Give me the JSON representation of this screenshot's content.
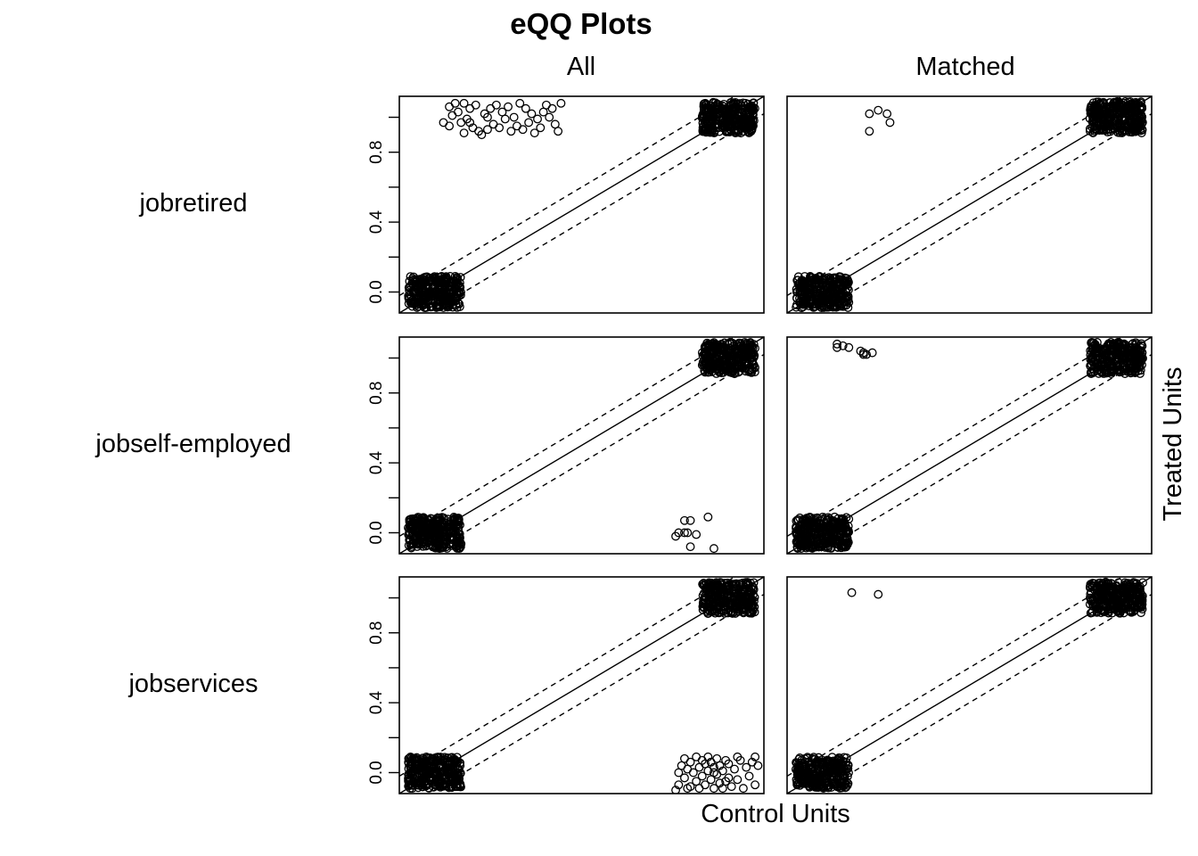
{
  "chart_data": {
    "type": "scatter",
    "title": "eQQ Plots",
    "column_labels": [
      "All",
      "Matched"
    ],
    "row_labels": [
      "jobretired",
      "jobself-employed",
      "jobservices"
    ],
    "xlabel": "Control Units",
    "ylabel": "Treated Units",
    "y_ticks": [
      "0.0",
      "0.4",
      "0.8"
    ],
    "y_tick_values": [
      0.0,
      0.2,
      0.4,
      0.6,
      0.8,
      1.0
    ],
    "xlim": [
      -0.12,
      1.12
    ],
    "ylim": [
      -0.12,
      1.12
    ],
    "reference_lines": {
      "identity": "solid",
      "offset": 0.1,
      "offset_style": "dashed"
    },
    "jitter": 0.09,
    "marker": "open-circle",
    "panels": [
      {
        "row": "jobretired",
        "column": "All",
        "clusters": [
          {
            "x": 0,
            "y": 0,
            "density": "dense"
          },
          {
            "x": 1,
            "y": 1,
            "density": "dense"
          }
        ],
        "points": [
          [
            0.07,
            1.08
          ],
          [
            0.05,
            1.06
          ],
          [
            0.1,
            1.08
          ],
          [
            0.12,
            1.05
          ],
          [
            0.08,
            1.03
          ],
          [
            0.06,
            1.01
          ],
          [
            0.11,
            0.99
          ],
          [
            0.09,
            0.97
          ],
          [
            0.05,
            0.95
          ],
          [
            0.13,
            0.94
          ],
          [
            0.15,
            0.92
          ],
          [
            0.1,
            0.91
          ],
          [
            0.16,
            0.9
          ],
          [
            0.18,
            0.93
          ],
          [
            0.2,
            0.96
          ],
          [
            0.17,
            1.02
          ],
          [
            0.19,
            1.05
          ],
          [
            0.21,
            1.07
          ],
          [
            0.23,
            1.03
          ],
          [
            0.24,
            0.99
          ],
          [
            0.22,
            0.94
          ],
          [
            0.26,
            0.92
          ],
          [
            0.28,
            0.95
          ],
          [
            0.27,
            1.0
          ],
          [
            0.25,
            1.06
          ],
          [
            0.29,
            1.08
          ],
          [
            0.31,
            1.05
          ],
          [
            0.33,
            1.02
          ],
          [
            0.32,
            0.97
          ],
          [
            0.3,
            0.93
          ],
          [
            0.34,
            0.91
          ],
          [
            0.36,
            0.94
          ],
          [
            0.35,
            0.99
          ],
          [
            0.37,
            1.03
          ],
          [
            0.38,
            1.07
          ],
          [
            0.4,
            1.05
          ],
          [
            0.39,
            1.0
          ],
          [
            0.41,
            0.96
          ],
          [
            0.42,
            0.92
          ],
          [
            0.43,
            1.08
          ],
          [
            0.03,
            0.97
          ],
          [
            0.14,
            1.07
          ],
          [
            0.12,
            0.97
          ],
          [
            0.18,
            1.0
          ]
        ]
      },
      {
        "row": "jobretired",
        "column": "Matched",
        "clusters": [
          {
            "x": 0,
            "y": 0,
            "density": "dense"
          },
          {
            "x": 1,
            "y": 1,
            "density": "dense"
          }
        ],
        "points": [
          [
            0.16,
            1.02
          ],
          [
            0.19,
            1.04
          ],
          [
            0.22,
            1.02
          ],
          [
            0.23,
            0.97
          ],
          [
            0.16,
            0.92
          ]
        ]
      },
      {
        "row": "jobself-employed",
        "column": "All",
        "clusters": [
          {
            "x": 0,
            "y": 0,
            "density": "dense"
          },
          {
            "x": 1,
            "y": 1,
            "density": "dense"
          }
        ],
        "points": [
          [
            0.82,
            -0.02
          ],
          [
            0.83,
            0.0
          ],
          [
            0.85,
            0.07
          ],
          [
            0.87,
            -0.08
          ],
          [
            0.87,
            0.07
          ],
          [
            0.86,
            0.0
          ],
          [
            0.85,
            0.0
          ],
          [
            0.89,
            -0.01
          ],
          [
            0.93,
            0.09
          ],
          [
            0.95,
            -0.09
          ]
        ]
      },
      {
        "row": "jobself-employed",
        "column": "Matched",
        "clusters": [
          {
            "x": 0,
            "y": 0,
            "density": "dense"
          },
          {
            "x": 1,
            "y": 1,
            "density": "dense"
          }
        ],
        "points": [
          [
            0.05,
            1.08
          ],
          [
            0.05,
            1.06
          ],
          [
            0.07,
            1.07
          ],
          [
            0.09,
            1.06
          ],
          [
            0.13,
            1.04
          ],
          [
            0.14,
            1.03
          ],
          [
            0.15,
            1.02
          ],
          [
            0.14,
            1.02
          ],
          [
            0.17,
            1.03
          ]
        ]
      },
      {
        "row": "jobservices",
        "column": "All",
        "clusters": [
          {
            "x": 0,
            "y": 0,
            "density": "dense"
          },
          {
            "x": 1,
            "y": 1,
            "density": "dense"
          }
        ],
        "points": [
          [
            0.82,
            -0.1
          ],
          [
            0.83,
            -0.07
          ],
          [
            0.83,
            0.0
          ],
          [
            0.84,
            0.04
          ],
          [
            0.85,
            -0.03
          ],
          [
            0.85,
            0.08
          ],
          [
            0.86,
            0.02
          ],
          [
            0.87,
            -0.08
          ],
          [
            0.87,
            0.06
          ],
          [
            0.88,
            0.0
          ],
          [
            0.89,
            -0.05
          ],
          [
            0.89,
            0.09
          ],
          [
            0.9,
            0.03
          ],
          [
            0.9,
            -0.09
          ],
          [
            0.91,
            0.07
          ],
          [
            0.91,
            -0.02
          ],
          [
            0.92,
            0.05
          ],
          [
            0.92,
            -0.07
          ],
          [
            0.93,
            0.01
          ],
          [
            0.93,
            0.09
          ],
          [
            0.94,
            -0.04
          ],
          [
            0.94,
            0.06
          ],
          [
            0.95,
            -0.09
          ],
          [
            0.95,
            0.03
          ],
          [
            0.96,
            -0.01
          ],
          [
            0.96,
            0.08
          ],
          [
            0.97,
            -0.06
          ],
          [
            0.97,
            0.04
          ],
          [
            0.98,
            -0.09
          ],
          [
            0.98,
            0.01
          ],
          [
            0.99,
            0.07
          ],
          [
            1.0,
            -0.03
          ],
          [
            1.0,
            0.05
          ],
          [
            1.01,
            -0.08
          ],
          [
            1.02,
            0.02
          ],
          [
            1.03,
            -0.04
          ],
          [
            1.04,
            0.07
          ],
          [
            1.05,
            -0.09
          ],
          [
            1.06,
            0.03
          ],
          [
            1.07,
            -0.02
          ],
          [
            1.08,
            0.06
          ],
          [
            1.09,
            0.09
          ],
          [
            1.09,
            -0.07
          ],
          [
            1.1,
            0.04
          ],
          [
            0.86,
            -0.09
          ],
          [
            0.95,
            0.0
          ],
          [
            0.99,
            -0.05
          ],
          [
            1.03,
            0.09
          ]
        ]
      },
      {
        "row": "jobservices",
        "column": "Matched",
        "clusters": [
          {
            "x": 0,
            "y": 0,
            "density": "dense"
          },
          {
            "x": 1,
            "y": 1,
            "density": "dense"
          }
        ],
        "points": [
          [
            0.1,
            1.03
          ],
          [
            0.19,
            1.02
          ]
        ]
      }
    ]
  }
}
